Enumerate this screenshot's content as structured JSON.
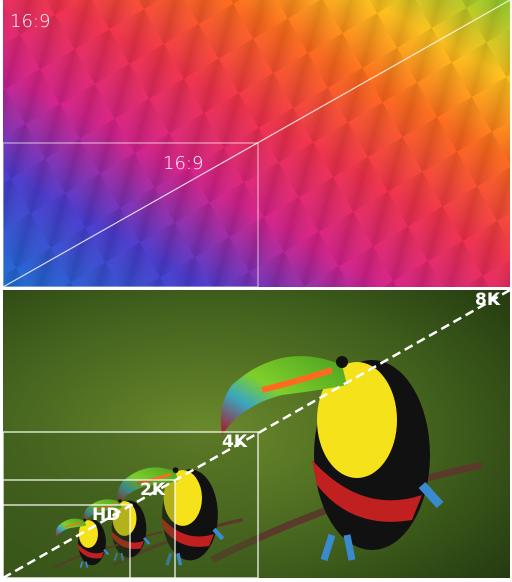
{
  "top_panel": {
    "corner_label": "16:9",
    "inner_label": "16:9"
  },
  "bottom_panel": {
    "labels": [
      "8K",
      "4K",
      "2K",
      "HD"
    ]
  }
}
